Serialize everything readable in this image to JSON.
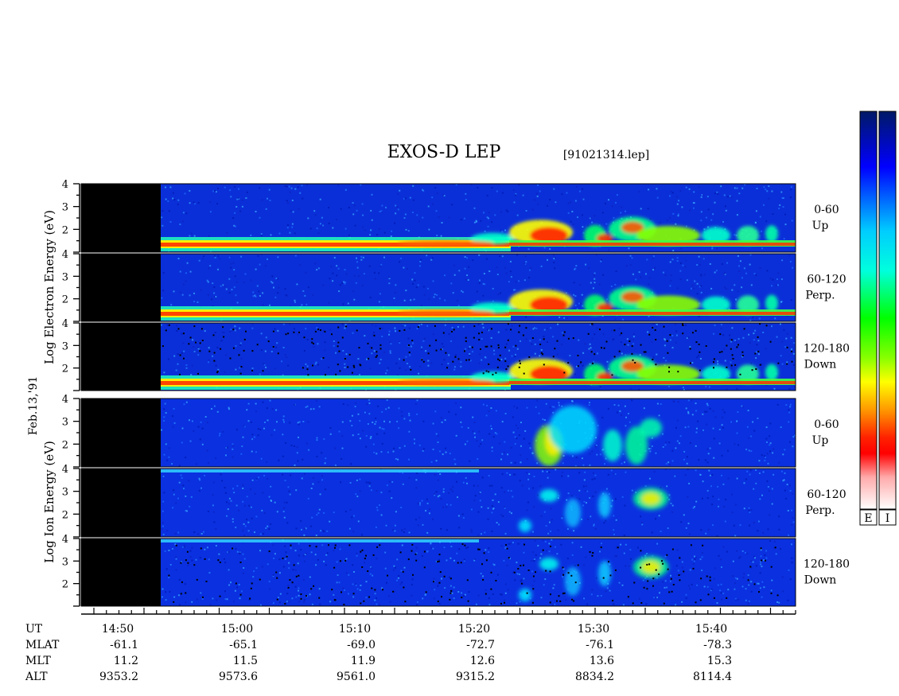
{
  "title": "EXOS-D LEP",
  "file_label": "[91021314.lep]",
  "date_label": "Feb.13,'91",
  "colors": {
    "background_black": "#000000",
    "separator": "#ffffff"
  },
  "chart_data": [
    {
      "type": "heatmap",
      "name": "electron",
      "ylabel": "Log Electron Energy (eV)",
      "yticks": [
        "2",
        "3",
        "4"
      ],
      "ylim": [
        1,
        4
      ],
      "panels": [
        {
          "label_line1": "0-60",
          "label_line2": "Up"
        },
        {
          "label_line1": "60-120",
          "label_line2": "Perp."
        },
        {
          "label_line1": "120-180",
          "label_line2": "Down"
        }
      ],
      "colorbar_label": "E"
    },
    {
      "type": "heatmap",
      "name": "ion",
      "ylabel": "Log Ion Energy (eV)",
      "yticks": [
        "2",
        "3",
        "4"
      ],
      "ylim": [
        1,
        4
      ],
      "panels": [
        {
          "label_line1": "0-60",
          "label_line2": "Up"
        },
        {
          "label_line1": "60-120",
          "label_line2": "Perp."
        },
        {
          "label_line1": "120-180",
          "label_line2": "Down"
        }
      ],
      "colorbar_label": "I"
    }
  ],
  "time_axis": {
    "rows": [
      {
        "label": "UT",
        "values": [
          "14:50",
          "15:00",
          "15:10",
          "15:20",
          "15:30",
          "15:40"
        ]
      },
      {
        "label": "MLAT",
        "values": [
          "-61.1",
          "-65.1",
          "-69.0",
          "-72.7",
          "-76.1",
          "-78.3"
        ]
      },
      {
        "label": "MLT",
        "values": [
          "11.2",
          "11.5",
          "11.9",
          "12.6",
          "13.6",
          "15.3"
        ]
      },
      {
        "label": "ALT",
        "values": [
          "9353.2",
          "9573.6",
          "9561.0",
          "9315.2",
          "8834.2",
          "8114.4"
        ]
      }
    ]
  }
}
